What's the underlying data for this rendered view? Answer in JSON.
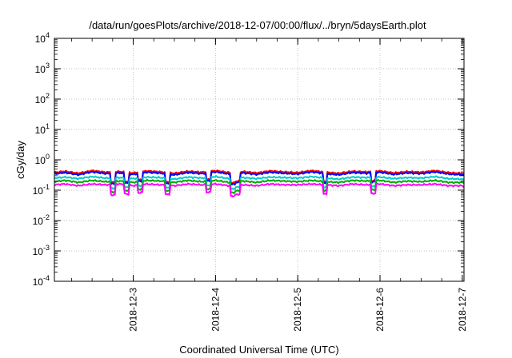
{
  "chart_data": {
    "type": "line",
    "title": "/data/run/goesPlots/archive/2018-12-07/00:00/flux/../bryn/5daysEarth.plot",
    "xlabel": "Coordinated Universal Time (UTC)",
    "ylabel": "cGy/day",
    "yscale": "log",
    "ylim": [
      0.0001,
      10000
    ],
    "xlim": [
      "2018-12-02T01:00",
      "2018-12-07T00:30"
    ],
    "grid": true,
    "x_ticks": [
      {
        "date": "2018-12-03T00:00",
        "label": "2018-12-3"
      },
      {
        "date": "2018-12-04T00:00",
        "label": "2018-12-4"
      },
      {
        "date": "2018-12-05T00:00",
        "label": "2018-12-5"
      },
      {
        "date": "2018-12-06T00:00",
        "label": "2018-12-6"
      },
      {
        "date": "2018-12-07T00:00",
        "label": "2018-12-7"
      }
    ],
    "y_ticks": [
      {
        "value": 0.0001,
        "base": "10",
        "exp": "-4"
      },
      {
        "value": 0.001,
        "base": "10",
        "exp": "-3"
      },
      {
        "value": 0.01,
        "base": "10",
        "exp": "-2"
      },
      {
        "value": 0.1,
        "base": "10",
        "exp": "-1"
      },
      {
        "value": 1,
        "base": "10",
        "exp": "0"
      },
      {
        "value": 10,
        "base": "10",
        "exp": "1"
      },
      {
        "value": 100,
        "base": "10",
        "exp": "2"
      },
      {
        "value": 1000,
        "base": "10",
        "exp": "3"
      },
      {
        "value": 10000,
        "base": "10",
        "exp": "4"
      }
    ],
    "x": [
      "2018-12-02T01:00",
      "2018-12-02T04:00",
      "2018-12-02T08:00",
      "2018-12-02T12:00",
      "2018-12-02T16:00",
      "2018-12-02T20:00",
      "2018-12-03T00:00",
      "2018-12-03T04:00",
      "2018-12-03T08:00",
      "2018-12-03T12:00",
      "2018-12-03T16:00",
      "2018-12-03T20:00",
      "2018-12-04T00:00",
      "2018-12-04T04:00",
      "2018-12-04T08:00",
      "2018-12-04T12:00",
      "2018-12-04T16:00",
      "2018-12-04T20:00",
      "2018-12-05T00:00",
      "2018-12-05T04:00",
      "2018-12-05T08:00",
      "2018-12-05T12:00",
      "2018-12-05T16:00",
      "2018-12-05T20:00",
      "2018-12-06T00:00",
      "2018-12-06T04:00",
      "2018-12-06T08:00",
      "2018-12-06T12:00",
      "2018-12-06T16:00",
      "2018-12-06T20:00",
      "2018-12-07T00:00",
      "2018-12-07T00:30"
    ],
    "series": [
      {
        "color": "#ff0000",
        "values": [
          0.38,
          0.42,
          0.36,
          0.44,
          0.39,
          0.41,
          0.37,
          0.43,
          0.4,
          0.36,
          0.42,
          0.39,
          0.44,
          0.38,
          0.41,
          0.37,
          0.43,
          0.4,
          0.38,
          0.44,
          0.39,
          0.36,
          0.42,
          0.4,
          0.43,
          0.37,
          0.41,
          0.39,
          0.44,
          0.38,
          0.36,
          0.34
        ]
      },
      {
        "color": "#0000ff",
        "values": [
          0.34,
          0.38,
          0.32,
          0.4,
          0.35,
          0.37,
          0.33,
          0.39,
          0.36,
          0.32,
          0.38,
          0.35,
          0.4,
          0.34,
          0.37,
          0.33,
          0.39,
          0.36,
          0.34,
          0.4,
          0.35,
          0.32,
          0.38,
          0.36,
          0.39,
          0.33,
          0.37,
          0.35,
          0.4,
          0.34,
          0.32,
          0.3
        ]
      },
      {
        "color": "#00cccc",
        "values": [
          0.25,
          0.27,
          0.24,
          0.28,
          0.25,
          0.26,
          0.24,
          0.27,
          0.26,
          0.23,
          0.27,
          0.25,
          0.28,
          0.24,
          0.26,
          0.24,
          0.27,
          0.26,
          0.25,
          0.28,
          0.25,
          0.23,
          0.27,
          0.26,
          0.27,
          0.24,
          0.26,
          0.25,
          0.28,
          0.24,
          0.23,
          0.22
        ]
      },
      {
        "color": "#00aa00",
        "values": [
          0.19,
          0.21,
          0.18,
          0.21,
          0.19,
          0.2,
          0.18,
          0.21,
          0.2,
          0.18,
          0.21,
          0.19,
          0.21,
          0.18,
          0.2,
          0.18,
          0.21,
          0.2,
          0.19,
          0.21,
          0.19,
          0.18,
          0.21,
          0.2,
          0.21,
          0.18,
          0.2,
          0.19,
          0.21,
          0.18,
          0.18,
          0.17
        ]
      },
      {
        "color": "#ff00ff",
        "values": [
          0.15,
          0.16,
          0.14,
          0.16,
          0.15,
          0.16,
          0.14,
          0.16,
          0.15,
          0.14,
          0.16,
          0.15,
          0.16,
          0.14,
          0.15,
          0.14,
          0.16,
          0.15,
          0.15,
          0.16,
          0.15,
          0.14,
          0.16,
          0.15,
          0.16,
          0.14,
          0.15,
          0.15,
          0.16,
          0.14,
          0.14,
          0.13
        ]
      }
    ],
    "dips": [
      {
        "date": "2018-12-02T18:00",
        "factor": 0.45
      },
      {
        "date": "2018-12-02T22:00",
        "factor": 0.5
      },
      {
        "date": "2018-12-03T02:00",
        "factor": 0.55
      },
      {
        "date": "2018-12-03T10:00",
        "factor": 0.5
      },
      {
        "date": "2018-12-03T22:00",
        "factor": 0.55
      },
      {
        "date": "2018-12-04T05:00",
        "factor": 0.45
      },
      {
        "date": "2018-12-04T06:30",
        "factor": 0.5
      },
      {
        "date": "2018-12-05T08:00",
        "factor": 0.5
      },
      {
        "date": "2018-12-05T22:00",
        "factor": 0.5
      }
    ]
  }
}
